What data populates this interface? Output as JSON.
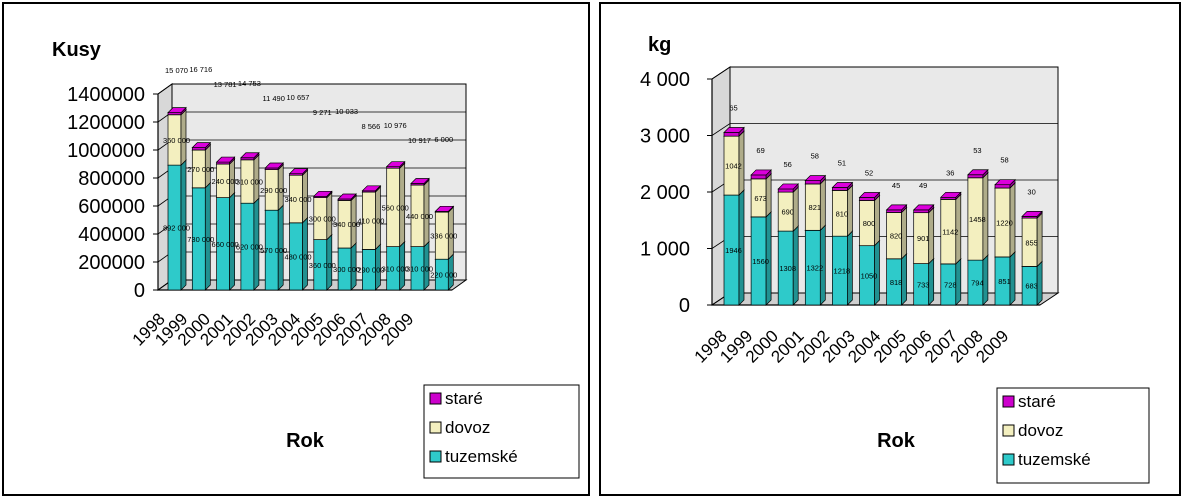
{
  "colors": {
    "stare": "#cc00cc",
    "dovoz": "#f3efbf",
    "tuzemske": "#2ecaca",
    "back": "#e9e9e9",
    "frame": "#000000"
  },
  "chart_data": [
    {
      "type": "bar",
      "stacked": true,
      "title": "Kusy",
      "xlabel": "Rok",
      "ylabel": "Kusy",
      "ylim": [
        0,
        1400000
      ],
      "yticks": [
        "1400000",
        "1200000",
        "1000000",
        "800000",
        "600000",
        "400000",
        "200000",
        "0"
      ],
      "grid": true,
      "legend_position": "bottom-right",
      "categories": [
        "1998",
        "1999",
        "2000",
        "2001",
        "2002",
        "2003",
        "2004",
        "2005",
        "2006",
        "2007",
        "2008",
        "2009"
      ],
      "series": [
        {
          "name": "staré",
          "color_key": "stare",
          "values": [
            15070,
            16716,
            13781,
            14753,
            11490,
            10657,
            9271,
            10033,
            8566,
            10976,
            10917,
            6000
          ]
        },
        {
          "name": "dovoz",
          "color_key": "dovoz",
          "values": [
            360000,
            270000,
            240000,
            310000,
            290000,
            340000,
            300000,
            340000,
            410000,
            560000,
            440000,
            336000
          ]
        },
        {
          "name": "tuzemské",
          "color_key": "tuzemske",
          "values": [
            892000,
            730000,
            660000,
            620000,
            570000,
            480000,
            360000,
            300000,
            290000,
            310000,
            310000,
            220000
          ]
        }
      ]
    },
    {
      "type": "bar",
      "stacked": true,
      "title": "kg",
      "xlabel": "Rok",
      "ylabel": "kg",
      "ylim": [
        0,
        4000
      ],
      "yticks": [
        "4 000",
        "3 000",
        "2 000",
        "1 000",
        "0"
      ],
      "grid": true,
      "legend_position": "bottom-right",
      "categories": [
        "1998",
        "1999",
        "2000",
        "2001",
        "2002",
        "2003",
        "2004",
        "2005",
        "2006",
        "2007",
        "2008",
        "2009"
      ],
      "series": [
        {
          "name": "staré",
          "color_key": "stare",
          "values": [
            65,
            69,
            56,
            58,
            51,
            52,
            45,
            49,
            36,
            53,
            58,
            30
          ]
        },
        {
          "name": "dovoz",
          "color_key": "dovoz",
          "values": [
            1042,
            673,
            690,
            821,
            810,
            800,
            820,
            901,
            1142,
            1458,
            1220,
            855
          ]
        },
        {
          "name": "tuzemské",
          "color_key": "tuzemske",
          "values": [
            1946,
            1560,
            1308,
            1322,
            1218,
            1050,
            818,
            733,
            728,
            794,
            851,
            683
          ]
        }
      ]
    }
  ]
}
